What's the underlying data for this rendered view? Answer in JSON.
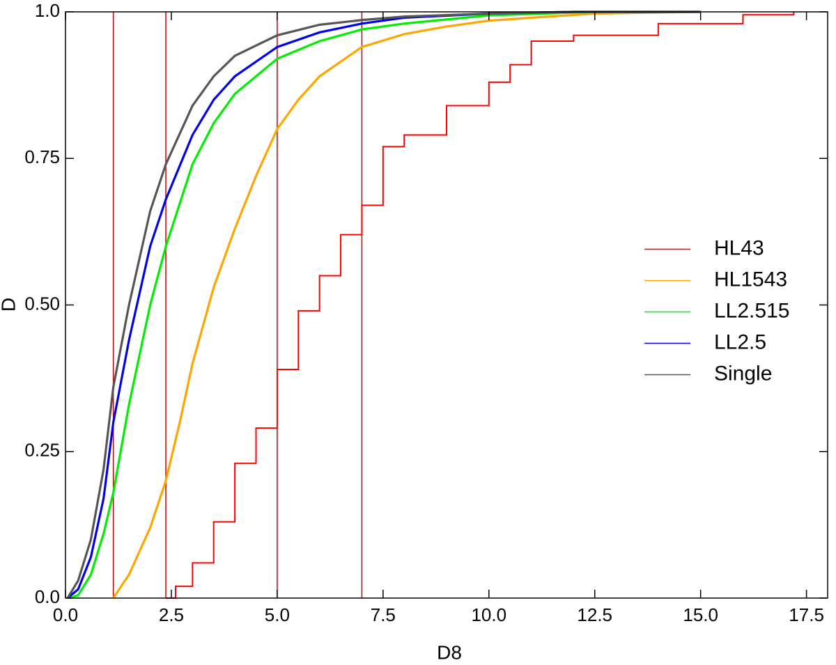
{
  "chart_data": {
    "type": "line",
    "xlabel": "D8",
    "ylabel": "D",
    "xlim": [
      0,
      18
    ],
    "ylim": [
      0,
      1
    ],
    "xticks": [
      {
        "value": 0,
        "label": "0.0"
      },
      2.5,
      {
        "value": 5,
        "label": "5.0"
      },
      7.5,
      {
        "value": 10,
        "label": "10.0"
      },
      12.5,
      {
        "value": 15,
        "label": "15.0"
      },
      17.5
    ],
    "yticks": [
      {
        "value": 0,
        "label": "0.0"
      },
      0.25,
      {
        "value": 0.5,
        "label": "0.50"
      },
      0.75,
      {
        "value": 1,
        "label": "1.0"
      }
    ],
    "legend": "center right",
    "vlines": {
      "color": "#cc0000",
      "x": [
        1.13,
        2.37,
        5.0,
        7.0
      ]
    },
    "series": [
      {
        "name": "HL43",
        "color": "#ff0000",
        "drawstyle": "steps-post",
        "x": [
          2.37,
          2.6,
          3.0,
          3.5,
          4.0,
          4.5,
          5.0,
          5.5,
          6.0,
          6.5,
          7.0,
          7.5,
          8.0,
          9.0,
          10.0,
          10.5,
          11.0,
          12.0,
          13.8,
          14.0,
          15.9,
          16.0,
          17.2
        ],
        "values": [
          0,
          0.02,
          0.06,
          0.13,
          0.23,
          0.29,
          0.39,
          0.49,
          0.55,
          0.62,
          0.67,
          0.77,
          0.79,
          0.84,
          0.88,
          0.91,
          0.95,
          0.96,
          0.96,
          0.98,
          0.98,
          0.995,
          1.0
        ]
      },
      {
        "name": "HL1543",
        "color": "#ffa500",
        "x": [
          1.13,
          1.5,
          2.0,
          2.37,
          2.7,
          3.0,
          3.5,
          4.0,
          4.5,
          5.0,
          5.5,
          6.0,
          7.0,
          8.0,
          9.0,
          10.0,
          11.0,
          12.5,
          14.9
        ],
        "values": [
          0,
          0.04,
          0.12,
          0.2,
          0.3,
          0.4,
          0.53,
          0.63,
          0.72,
          0.8,
          0.85,
          0.89,
          0.94,
          0.962,
          0.975,
          0.985,
          0.99,
          0.997,
          1.0
        ]
      },
      {
        "name": "LL2.515",
        "color": "#00ee00",
        "x": [
          0.1,
          0.3,
          0.6,
          0.9,
          1.13,
          1.5,
          2.0,
          2.37,
          3.0,
          3.5,
          4.0,
          5.0,
          6.0,
          7.0,
          8.0,
          10.0,
          12.5,
          15
        ],
        "values": [
          0,
          0.005,
          0.04,
          0.11,
          0.18,
          0.33,
          0.5,
          0.6,
          0.74,
          0.81,
          0.86,
          0.92,
          0.95,
          0.97,
          0.98,
          0.994,
          1.0,
          1.0
        ]
      },
      {
        "name": "LL2.5",
        "color": "#0000ee",
        "x": [
          0.05,
          0.3,
          0.6,
          0.9,
          1.13,
          1.5,
          2.0,
          2.37,
          3.0,
          3.5,
          4.0,
          5.0,
          6.0,
          7.0,
          8.0,
          10.0,
          12.0,
          15
        ],
        "values": [
          0,
          0.015,
          0.07,
          0.17,
          0.3,
          0.44,
          0.6,
          0.68,
          0.79,
          0.85,
          0.89,
          0.94,
          0.965,
          0.98,
          0.99,
          0.997,
          1.0,
          1.0
        ]
      },
      {
        "name": "Single",
        "color": "#555555",
        "x": [
          0.05,
          0.3,
          0.6,
          0.9,
          1.13,
          1.5,
          2.0,
          2.37,
          3.0,
          3.5,
          4.0,
          5.0,
          6.0,
          7.0,
          8.0,
          10.0,
          12.0,
          15
        ],
        "values": [
          0,
          0.03,
          0.1,
          0.22,
          0.36,
          0.5,
          0.66,
          0.74,
          0.84,
          0.89,
          0.925,
          0.96,
          0.978,
          0.986,
          0.992,
          0.997,
          1.0,
          1.0
        ]
      }
    ]
  }
}
